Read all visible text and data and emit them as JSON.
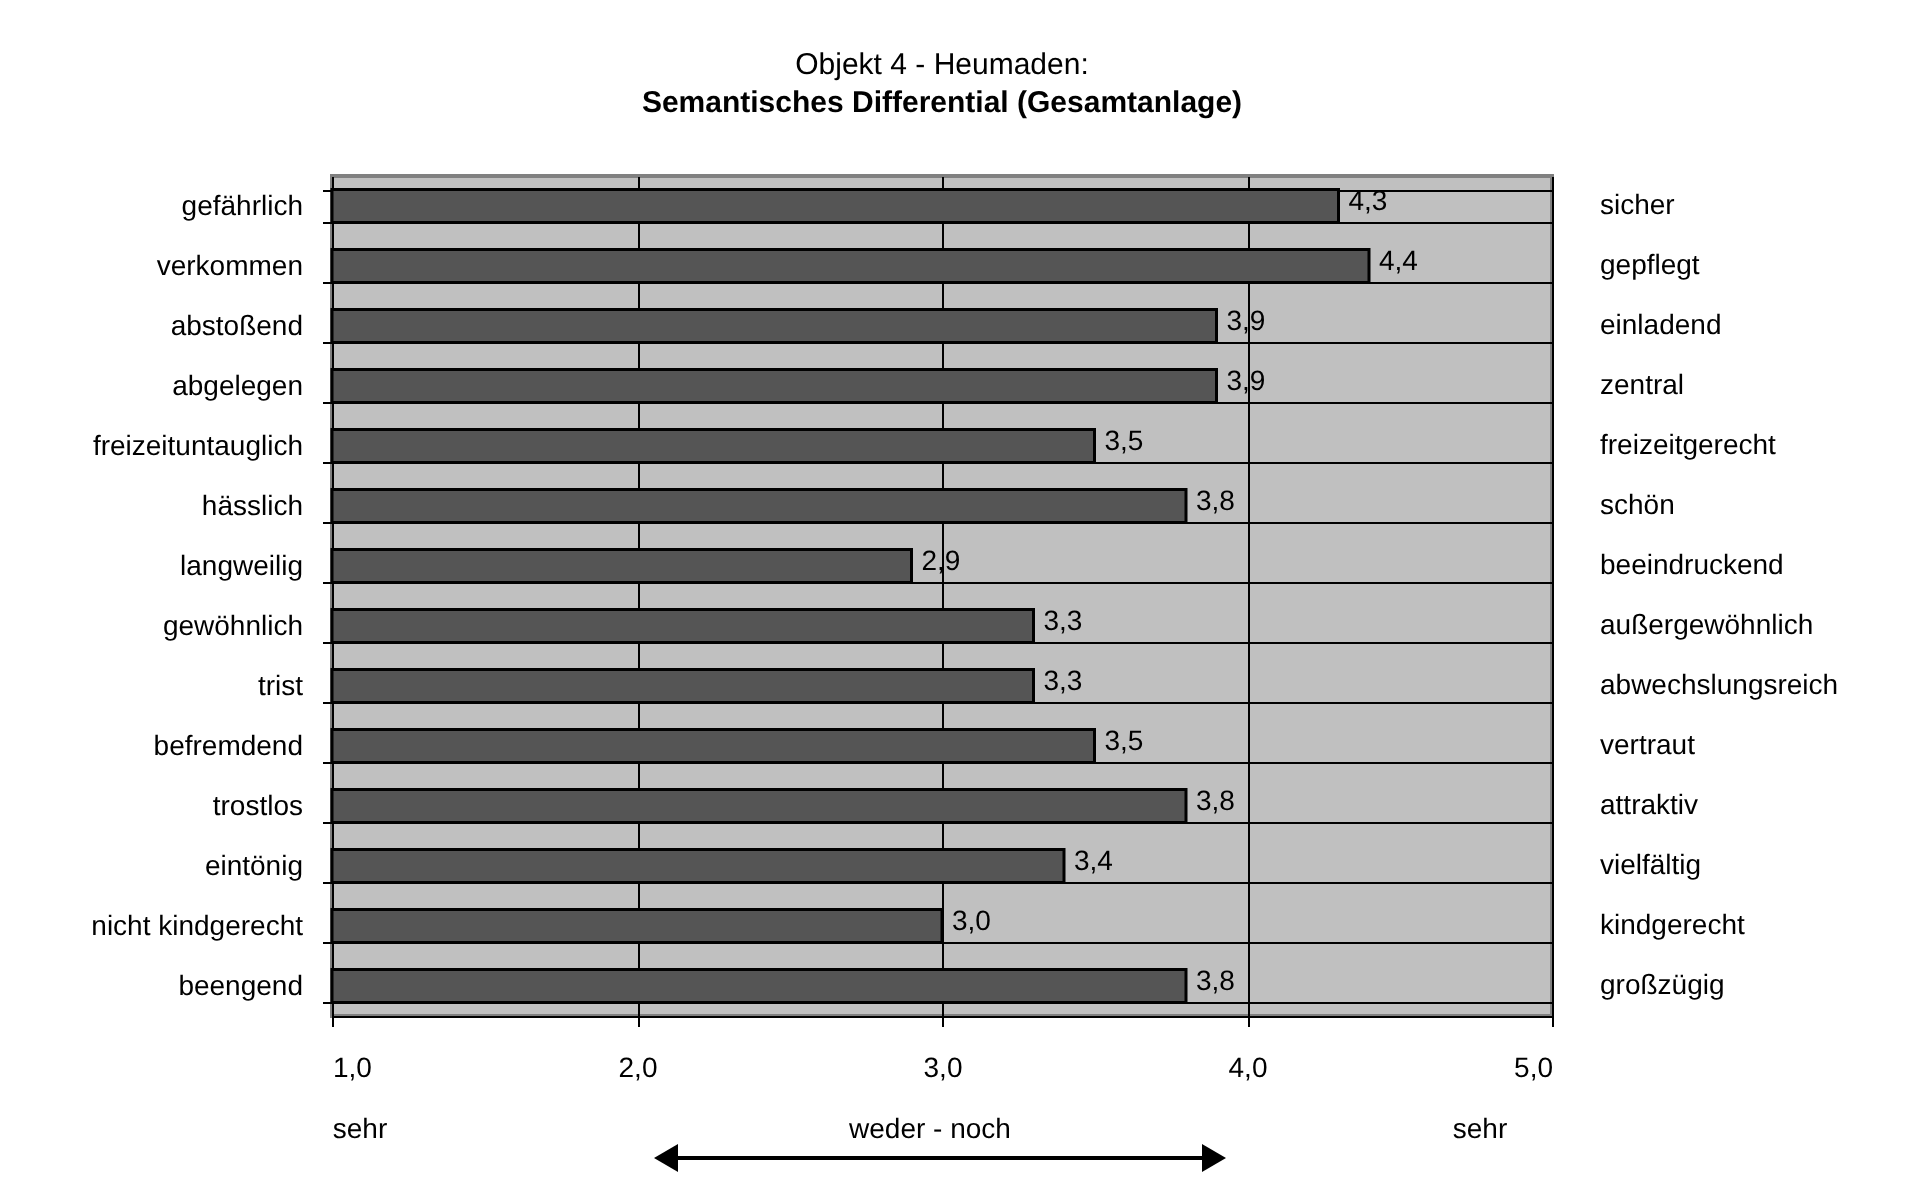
{
  "chart_data": {
    "type": "bar",
    "orientation": "horizontal",
    "title": "Objekt 4 - Heumaden:",
    "subtitle": "Semantisches Differential (Gesamtanlage)",
    "categories": [
      "gefährlich",
      "verkommen",
      "abstoßend",
      "abgelegen",
      "freizeituntauglich",
      "hässlich",
      "langweilig",
      "gewöhnlich",
      "trist",
      "befremdend",
      "trostlos",
      "eintönig",
      "nicht kindgerecht",
      "beengend"
    ],
    "y2_categories": [
      "sicher",
      "gepflegt",
      "einladend",
      "zentral",
      "freizeitgerecht",
      "schön",
      "beeindruckend",
      "außergewöhnlich",
      "abwechslungsreich",
      "vertraut",
      "attraktiv",
      "vielfältig",
      "kindgerecht",
      "großzügig"
    ],
    "values": [
      4.3,
      4.4,
      3.9,
      3.9,
      3.5,
      3.8,
      2.9,
      3.3,
      3.3,
      3.5,
      3.8,
      3.4,
      3.0,
      3.8
    ],
    "value_labels": [
      "4,3",
      "4,4",
      "3,9",
      "3,9",
      "3,5",
      "3,8",
      "2,9",
      "3,3",
      "3,3",
      "3,5",
      "3,8",
      "3,4",
      "3,0",
      "3,8"
    ],
    "color": "#555555",
    "xlim": [
      1,
      5
    ],
    "xticks": [
      {
        "value": 1,
        "label": "1,0"
      },
      {
        "value": 2,
        "label": "2,0"
      },
      {
        "value": 3,
        "label": "3,0"
      },
      {
        "value": 4,
        "label": "4,0"
      },
      {
        "value": 5,
        "label": "5,0"
      }
    ],
    "grid": true,
    "annotations": [
      "sehr",
      "weder - noch",
      "sehr"
    ]
  }
}
